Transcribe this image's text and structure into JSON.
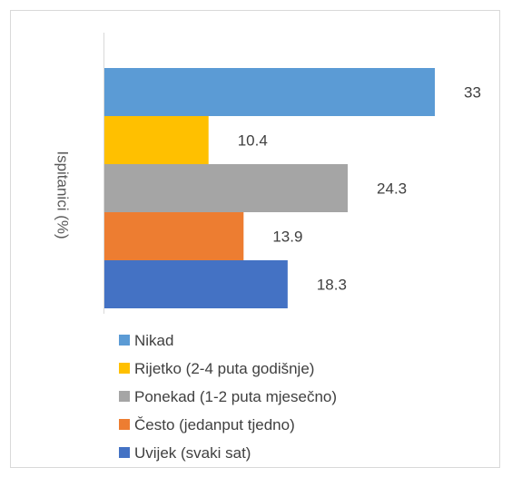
{
  "chart_data": {
    "type": "bar",
    "orientation": "horizontal",
    "title": "",
    "ylabel": "Ispitanici (%)",
    "xlim": [
      0,
      35
    ],
    "grid": false,
    "legend_position": "bottom",
    "series": [
      {
        "name": "Nikad",
        "value": 33,
        "label": "33",
        "color": "#5b9bd5"
      },
      {
        "name": "Rijetko (2-4 puta godišnje)",
        "value": 10.4,
        "label": "10.4",
        "color": "#ffc000"
      },
      {
        "name": "Ponekad (1-2 puta mjesečno)",
        "value": 24.3,
        "label": "24.3",
        "color": "#a5a5a5"
      },
      {
        "name": "Često (jedanput tjedno)",
        "value": 13.9,
        "label": "13.9",
        "color": "#ed7d31"
      },
      {
        "name": "Uvijek (svaki sat)",
        "value": 18.3,
        "label": "18.3",
        "color": "#4472c4"
      }
    ]
  }
}
